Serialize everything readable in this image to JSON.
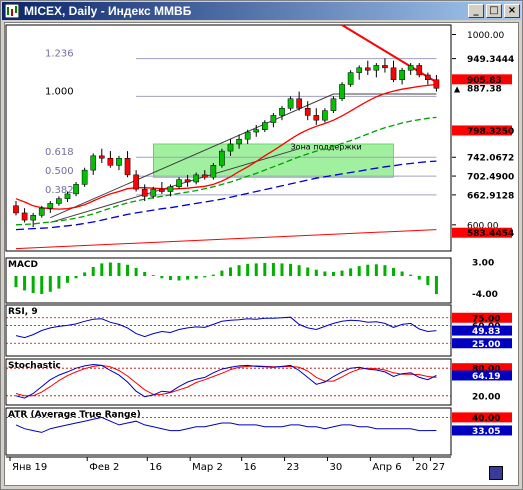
{
  "window": {
    "title": "MICEX, Daily - Индекс ММВБ",
    "buttons": {
      "minimize": "_",
      "restore": "□",
      "close": "×"
    }
  },
  "main_panel": {
    "price_labels": [
      "1000.00",
      "949.3444",
      "905.83",
      "887.38",
      "798.3250",
      "742.0672",
      "702.4900",
      "662.9128",
      "600.00",
      "583.4454"
    ],
    "fib_labels": [
      "1.236",
      "1.000",
      "0.618",
      "0.500",
      "0.382"
    ],
    "annotation": "Зона поддержки"
  },
  "indicators": {
    "macd": {
      "name": "MACD",
      "labels": [
        "3.00",
        "-4.00"
      ]
    },
    "rsi": {
      "name": "RSI, 9",
      "labels": [
        "75.00",
        "60.00",
        "49.83",
        "25.00"
      ]
    },
    "stochastic": {
      "name": "Stochastic",
      "labels": [
        "80.00",
        "64.19",
        "20.00"
      ]
    },
    "atr": {
      "name": "ATR (Average True Range)",
      "labels": [
        "40.00",
        "33.05"
      ]
    }
  },
  "time_axis": [
    "Янв 19",
    "Фев 2",
    "16",
    "Мар 2",
    "16",
    "23",
    "30",
    "Апр 6",
    "20",
    "27"
  ],
  "colors": {
    "bull_candle": "#00c000",
    "bear_candle": "#ff0000",
    "support_zone": "#90ee90",
    "fib_line": "#a0a0c0",
    "ma_red": "#ff0000",
    "ma_green": "#00a000",
    "ma_blue": "#0000cc",
    "title_gradient_start": "#0a246a",
    "title_gradient_end": "#a6caf0"
  },
  "chart_data": [
    {
      "type": "candlestick",
      "title": "MICEX, Daily - Индекс ММВБ",
      "x_tick_labels": [
        "Янв 19",
        "Фев 2",
        "16",
        "Мар 2",
        "16",
        "23",
        "30",
        "Апр 6",
        "20",
        "27"
      ],
      "ylim": [
        545,
        1020
      ],
      "candles": [
        [
          640,
          650,
          620,
          625
        ],
        [
          625,
          635,
          605,
          610
        ],
        [
          610,
          625,
          595,
          620
        ],
        [
          620,
          640,
          615,
          635
        ],
        [
          635,
          650,
          625,
          645
        ],
        [
          645,
          660,
          640,
          655
        ],
        [
          655,
          670,
          648,
          665
        ],
        [
          665,
          690,
          660,
          685
        ],
        [
          685,
          720,
          680,
          715
        ],
        [
          715,
          750,
          705,
          745
        ],
        [
          745,
          760,
          730,
          740
        ],
        [
          740,
          755,
          720,
          725
        ],
        [
          725,
          745,
          715,
          740
        ],
        [
          740,
          755,
          700,
          705
        ],
        [
          705,
          715,
          670,
          675
        ],
        [
          675,
          685,
          650,
          660
        ],
        [
          660,
          680,
          655,
          675
        ],
        [
          675,
          690,
          665,
          670
        ],
        [
          670,
          685,
          660,
          680
        ],
        [
          680,
          700,
          675,
          695
        ],
        [
          695,
          705,
          680,
          690
        ],
        [
          690,
          710,
          685,
          705
        ],
        [
          705,
          715,
          695,
          700
        ],
        [
          700,
          730,
          695,
          725
        ],
        [
          725,
          760,
          720,
          755
        ],
        [
          755,
          780,
          745,
          770
        ],
        [
          770,
          790,
          760,
          780
        ],
        [
          780,
          800,
          770,
          795
        ],
        [
          795,
          810,
          785,
          800
        ],
        [
          800,
          820,
          795,
          815
        ],
        [
          815,
          835,
          805,
          830
        ],
        [
          830,
          850,
          820,
          845
        ],
        [
          845,
          870,
          840,
          865
        ],
        [
          865,
          880,
          840,
          845
        ],
        [
          845,
          860,
          820,
          830
        ],
        [
          830,
          845,
          810,
          820
        ],
        [
          820,
          845,
          815,
          840
        ],
        [
          840,
          870,
          835,
          865
        ],
        [
          865,
          900,
          860,
          895
        ],
        [
          895,
          925,
          890,
          920
        ],
        [
          920,
          935,
          905,
          930
        ],
        [
          930,
          945,
          915,
          925
        ],
        [
          925,
          940,
          910,
          935
        ],
        [
          935,
          950,
          920,
          930
        ],
        [
          930,
          945,
          900,
          905
        ],
        [
          905,
          930,
          895,
          925
        ],
        [
          925,
          940,
          915,
          935
        ],
        [
          935,
          940,
          910,
          915
        ],
        [
          915,
          920,
          895,
          905
        ],
        [
          905,
          915,
          880,
          887
        ]
      ],
      "ma_red_fast": [
        655,
        648,
        640,
        636,
        634,
        633,
        634,
        637,
        642,
        650,
        658,
        665,
        670,
        676,
        678,
        678,
        677,
        676,
        675,
        676,
        677,
        679,
        681,
        685,
        692,
        701,
        712,
        722,
        733,
        745,
        756,
        768,
        780,
        791,
        800,
        807,
        813,
        820,
        829,
        839,
        850,
        860,
        869,
        876,
        881,
        885,
        888,
        891,
        893,
        895
      ],
      "ma_green": [
        600,
        601,
        602,
        604,
        606,
        608,
        611,
        614,
        618,
        623,
        629,
        635,
        641,
        646,
        650,
        654,
        657,
        660,
        663,
        666,
        669,
        672,
        676,
        680,
        685,
        690,
        696,
        702,
        708,
        715,
        722,
        729,
        736,
        743,
        749,
        755,
        760,
        765,
        771,
        777,
        784,
        791,
        798,
        804,
        809,
        814,
        818,
        821,
        824,
        826
      ],
      "ma_blue": [
        590,
        591,
        592,
        593,
        594,
        596,
        598,
        600,
        603,
        606,
        610,
        614,
        618,
        622,
        625,
        628,
        631,
        634,
        636,
        639,
        642,
        645,
        648,
        651,
        654,
        658,
        662,
        666,
        670,
        674,
        678,
        682,
        686,
        690,
        694,
        698,
        701,
        704,
        707,
        710,
        713,
        716,
        719,
        722,
        724,
        727,
        729,
        731,
        733,
        734
      ],
      "fib_levels": [
        {
          "ratio": "1.236",
          "value": 949.3444
        },
        {
          "ratio": "1.000",
          "value": 870
        },
        {
          "ratio": "0.618",
          "value": 742.0672
        },
        {
          "ratio": "0.500",
          "value": 702.49
        },
        {
          "ratio": "0.382",
          "value": 662.9128
        }
      ],
      "horizontal_levels": [
        1000,
        949.3444,
        905.83,
        887.38,
        798.325,
        742.0672,
        702.49,
        662.9128,
        600,
        583.4454
      ],
      "support_zone": [
        700,
        770
      ]
    },
    {
      "type": "bar",
      "title": "MACD",
      "ylim": [
        -6,
        4
      ],
      "values": [
        -2.5,
        -3.2,
        -3.8,
        -4.0,
        -3.5,
        -2.8,
        -1.5,
        -0.5,
        0.8,
        2.0,
        2.8,
        3.0,
        2.9,
        2.5,
        1.8,
        0.9,
        0.2,
        -0.5,
        -0.9,
        -1.0,
        -0.8,
        -0.6,
        -0.3,
        0.3,
        1.2,
        1.9,
        2.4,
        2.7,
        2.8,
        2.9,
        2.9,
        2.8,
        2.7,
        2.4,
        1.9,
        1.4,
        1.0,
        0.9,
        1.2,
        1.7,
        2.2,
        2.5,
        2.6,
        2.4,
        1.8,
        1.0,
        0.3,
        -0.8,
        -2.0,
        -4.0
      ]
    },
    {
      "type": "line",
      "title": "RSI, 9",
      "ylim": [
        0,
        100
      ],
      "reference_levels": [
        75,
        60,
        25
      ],
      "values": [
        40,
        36,
        42,
        50,
        55,
        58,
        60,
        63,
        68,
        72,
        73,
        66,
        62,
        55,
        44,
        38,
        44,
        48,
        46,
        52,
        55,
        57,
        56,
        62,
        68,
        70,
        71,
        73,
        72,
        74,
        74,
        75,
        76,
        62,
        55,
        52,
        58,
        64,
        68,
        70,
        69,
        66,
        67,
        64,
        56,
        62,
        64,
        53,
        48,
        49.83
      ]
    },
    {
      "type": "line",
      "title": "Stochastic",
      "ylim": [
        0,
        100
      ],
      "reference_levels": [
        80,
        20
      ],
      "series": [
        {
          "values": [
            20,
            15,
            25,
            40,
            55,
            65,
            72,
            80,
            85,
            88,
            86,
            75,
            65,
            50,
            30,
            18,
            22,
            30,
            28,
            40,
            50,
            56,
            60,
            70,
            78,
            82,
            85,
            86,
            84,
            83,
            82,
            84,
            86,
            75,
            60,
            45,
            50,
            62,
            72,
            80,
            82,
            78,
            76,
            72,
            62,
            68,
            70,
            60,
            55,
            64.19
          ]
        },
        {
          "values": [
            25,
            20,
            20,
            28,
            40,
            53,
            64,
            72,
            79,
            84,
            86,
            83,
            75,
            63,
            48,
            33,
            23,
            23,
            27,
            33,
            39,
            49,
            55,
            62,
            69,
            77,
            82,
            84,
            85,
            84,
            83,
            83,
            84,
            82,
            74,
            60,
            52,
            52,
            61,
            71,
            78,
            80,
            79,
            76,
            70,
            67,
            67,
            66,
            62,
            60
          ]
        }
      ]
    },
    {
      "type": "line",
      "title": "ATR (Average True Range)",
      "ylim": [
        20,
        45
      ],
      "reference_levels": [
        40
      ],
      "values": [
        36,
        34,
        33,
        32,
        34,
        35,
        36,
        37,
        38,
        39,
        40,
        38,
        36,
        37,
        38,
        36,
        35,
        34,
        33,
        33,
        34,
        35,
        35,
        36,
        37,
        37,
        36,
        36,
        36,
        35,
        35,
        35,
        36,
        36,
        35,
        35,
        34,
        35,
        36,
        36,
        35,
        35,
        34,
        34,
        34,
        34,
        34,
        33,
        33,
        33.05
      ]
    }
  ]
}
